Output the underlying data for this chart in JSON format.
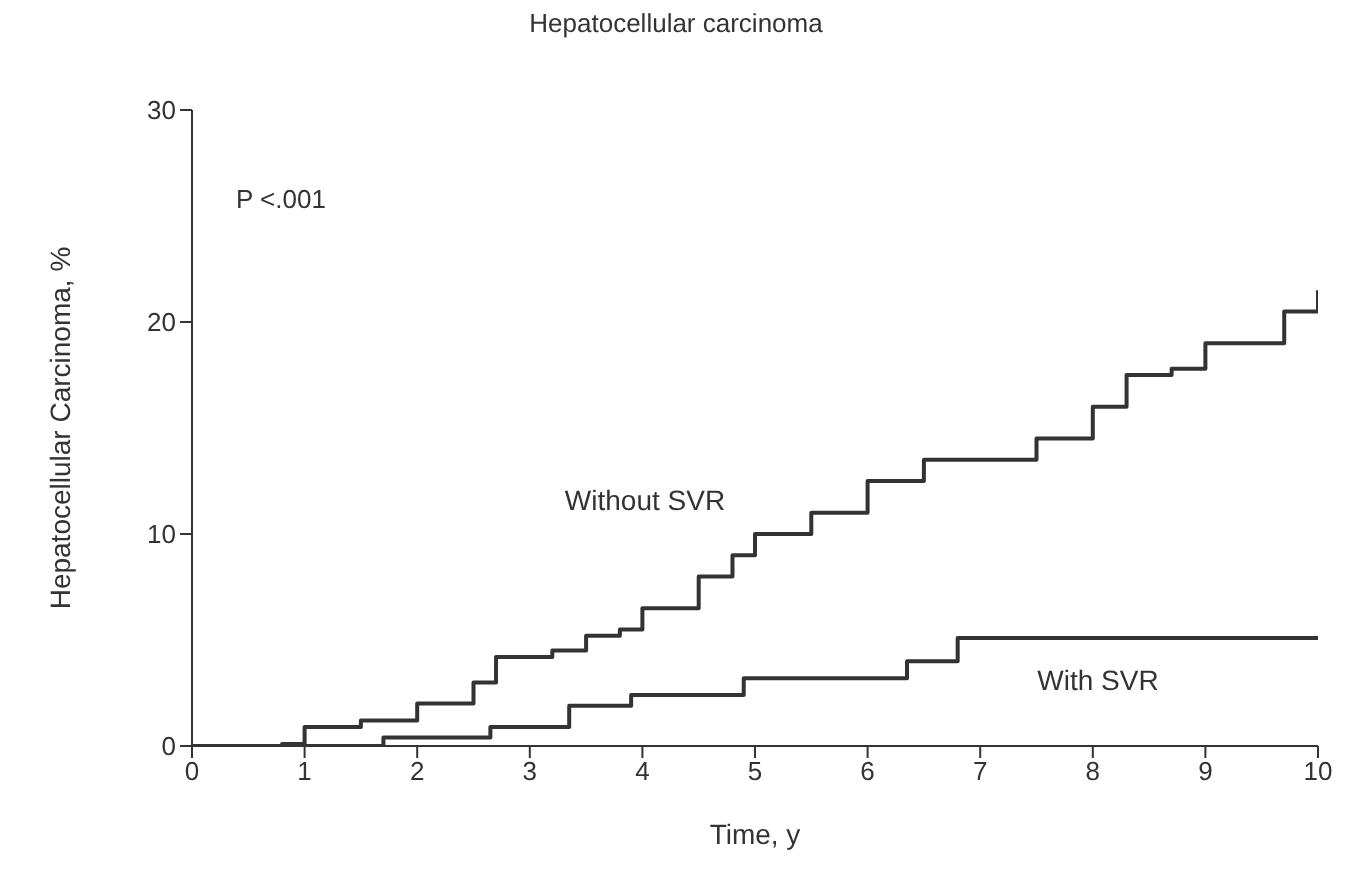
{
  "chart_data": {
    "type": "step",
    "title": "Hepatocellular carcinoma",
    "xlabel": "Time, y",
    "ylabel": "Hepatocellular Carcinoma, %",
    "annotations": [
      "P <.001"
    ],
    "xlim": [
      0,
      10
    ],
    "xticks": [
      0,
      1,
      2,
      3,
      4,
      5,
      6,
      7,
      8,
      9,
      10
    ],
    "ylim": [
      0,
      30
    ],
    "yticks": [
      0,
      10,
      20,
      30
    ],
    "grid": false,
    "legend": false,
    "marker": "none",
    "line_style": "solid",
    "series": [
      {
        "name": "Without SVR",
        "color": "#333333",
        "x": [
          0,
          0.8,
          1,
          1.5,
          2,
          2.5,
          2.7,
          3.2,
          3.5,
          3.8,
          4,
          4.5,
          4.8,
          5,
          5.5,
          6,
          6.5,
          7,
          7.5,
          8,
          8.3,
          8.7,
          9,
          9.5,
          9.7,
          10
        ],
        "values": [
          0,
          0.1,
          0.9,
          1.2,
          2,
          3,
          4.2,
          4.5,
          5.2,
          5.5,
          6.5,
          8,
          9,
          10,
          11,
          12.5,
          13.5,
          13.5,
          14.5,
          16,
          17.5,
          17.8,
          19,
          19,
          20.5,
          21.5
        ]
      },
      {
        "name": "With SVR",
        "color": "#333333",
        "x": [
          0,
          1.7,
          2.65,
          3.35,
          3.9,
          4.9,
          6.35,
          6.8,
          10
        ],
        "values": [
          0,
          0.4,
          0.9,
          1.9,
          2.4,
          3.2,
          4,
          5.1,
          5.1
        ]
      }
    ]
  }
}
